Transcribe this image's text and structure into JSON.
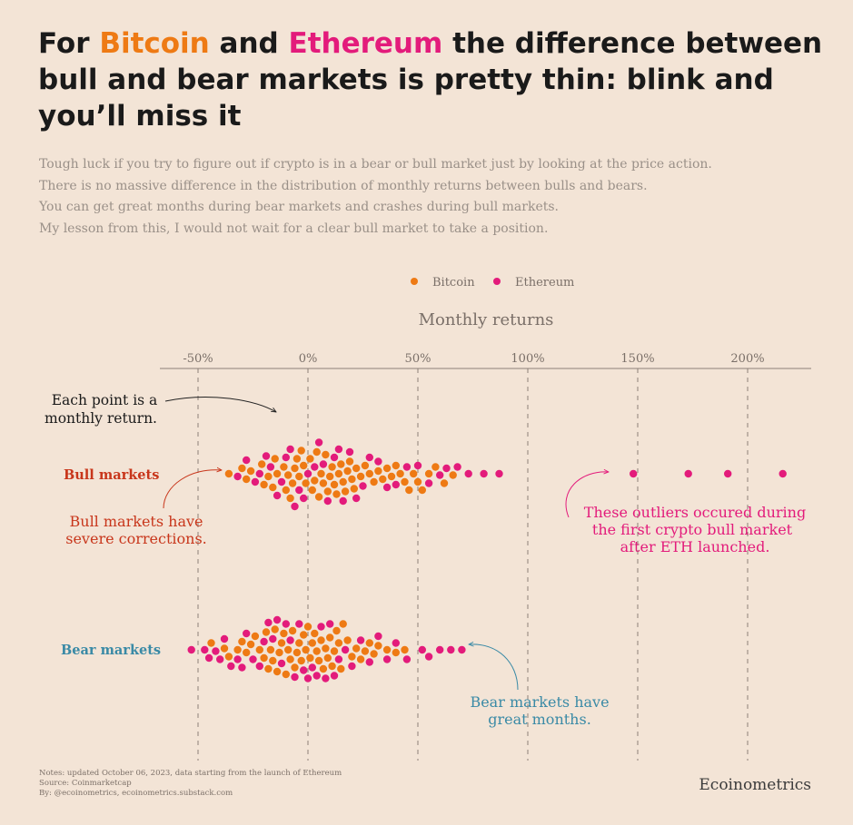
{
  "title": {
    "part1": "For ",
    "bitcoin": "Bitcoin",
    "part2": " and ",
    "ethereum": "Ethereum",
    "part3": " the difference between bull and bear markets is pretty thin: blink and you’ll miss it"
  },
  "subtitle_lines": [
    "Tough luck if you try to figure out if crypto is in a bear or bull market just by looking at the price action.",
    "There is no massive difference in the distribution of monthly returns between bulls and bears.",
    "You can get great months during bear markets and crashes during bull markets.",
    "My lesson from this, I would not wait for a clear bull market to take a position."
  ],
  "footer": {
    "notes": "Notes: updated October 06, 2023, data starting from the launch of Ethereum",
    "source": "Source: Coinmarketcap",
    "by": "By: @ecoinometrics, ecoinometrics.substack.com",
    "brand": "Ecoinometrics"
  },
  "colors": {
    "background": "#f3e4d6",
    "bitcoin": "#ee7a14",
    "ethereum": "#e31b7b",
    "bull_label": "#c8361b",
    "bear_label": "#3a8aa6",
    "annotation_dark": "#222222"
  },
  "chart_data": {
    "type": "scatter",
    "subtype": "beeswarm",
    "xlabel": "Monthly returns",
    "x_unit": "%",
    "xlim": [
      -68,
      228
    ],
    "xticks": [
      -50,
      0,
      50,
      100,
      150,
      200
    ],
    "xtick_labels": [
      "-50%",
      "0%",
      "50%",
      "100%",
      "150%",
      "200%"
    ],
    "grid": "vertical dashed at ticks",
    "legend": {
      "position": "top-center",
      "entries": [
        "Bitcoin",
        "Ethereum"
      ]
    },
    "categories": [
      "Bull markets",
      "Bear markets"
    ],
    "series": [
      {
        "name": "Bitcoin",
        "color": "#ee7a14",
        "bull": [
          -36,
          -30,
          -28,
          -26,
          -21,
          -20,
          -18,
          -16,
          -15,
          -14,
          -11,
          -10,
          -9,
          -8,
          -7,
          -6,
          -5,
          -4,
          -3,
          -2,
          -1,
          1,
          2,
          3,
          4,
          5,
          6,
          7,
          8,
          9,
          10,
          11,
          12,
          13,
          14,
          15,
          16,
          17,
          18,
          19,
          20,
          21,
          22,
          24,
          26,
          28,
          30,
          32,
          34,
          36,
          38,
          40,
          42,
          44,
          46,
          48,
          50,
          52,
          55,
          58,
          62,
          66
        ],
        "bear": [
          -44,
          -38,
          -36,
          -32,
          -30,
          -28,
          -26,
          -24,
          -22,
          -20,
          -19,
          -18,
          -17,
          -16,
          -15,
          -14,
          -13,
          -12,
          -11,
          -10,
          -9,
          -8,
          -7,
          -6,
          -5,
          -4,
          -3,
          -2,
          -1,
          0,
          1,
          2,
          3,
          4,
          5,
          6,
          7,
          8,
          9,
          10,
          11,
          12,
          13,
          14,
          15,
          16,
          18,
          20,
          22,
          24,
          26,
          28,
          30,
          32,
          36,
          40,
          44
        ]
      },
      {
        "name": "Ethereum",
        "color": "#e31b7b",
        "bull": [
          -32,
          -28,
          -24,
          -22,
          -19,
          -17,
          -14,
          -12,
          -10,
          -8,
          -6,
          -4,
          -2,
          0,
          3,
          5,
          7,
          9,
          12,
          14,
          16,
          19,
          22,
          25,
          28,
          32,
          36,
          40,
          45,
          50,
          55,
          60,
          63,
          68,
          73,
          80,
          87,
          148,
          173,
          191,
          216
        ],
        "bear": [
          -53,
          -47,
          -45,
          -42,
          -40,
          -38,
          -35,
          -32,
          -30,
          -28,
          -25,
          -22,
          -20,
          -18,
          -16,
          -14,
          -12,
          -10,
          -8,
          -6,
          -4,
          -2,
          0,
          2,
          4,
          6,
          8,
          10,
          12,
          14,
          17,
          20,
          24,
          28,
          32,
          36,
          40,
          45,
          52,
          55,
          60,
          65,
          70
        ]
      }
    ]
  },
  "annotations": {
    "each_point": [
      "Each point is a",
      "monthly return."
    ],
    "bull_corrections": [
      "Bull markets have",
      "severe corrections."
    ],
    "outliers": [
      "These outliers occured during",
      "the first crypto bull market",
      "after ETH launched."
    ],
    "bear_great": [
      "Bear markets have",
      "great months."
    ]
  }
}
